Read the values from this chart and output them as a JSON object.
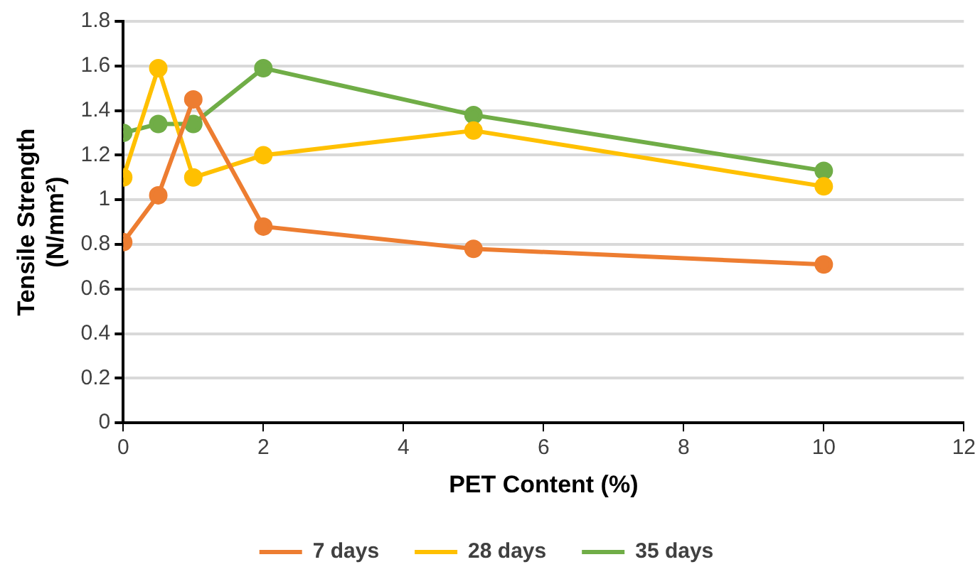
{
  "chart_data": {
    "type": "line",
    "xlabel": "PET Content (%)",
    "ylabel": "Tensile Strength\n(N/mm²)",
    "x": [
      0,
      0.5,
      1,
      2,
      5,
      10
    ],
    "series": [
      {
        "name": "7 days",
        "color": "#ed7d31",
        "values": [
          0.81,
          1.02,
          1.45,
          0.88,
          0.78,
          0.71
        ]
      },
      {
        "name": "28 days",
        "color": "#ffc000",
        "values": [
          1.1,
          1.59,
          1.1,
          1.2,
          1.31,
          1.06
        ]
      },
      {
        "name": "35 days",
        "color": "#70ad47",
        "values": [
          1.3,
          1.34,
          1.34,
          1.59,
          1.38,
          1.13
        ]
      }
    ],
    "xlim": [
      0,
      12
    ],
    "xticks": [
      0,
      2,
      4,
      6,
      8,
      10,
      12
    ],
    "ylim": [
      0,
      1.8
    ],
    "yticks": [
      0,
      0.2,
      0.4,
      0.6,
      0.8,
      1,
      1.2,
      1.4,
      1.6,
      1.8
    ],
    "grid": "y",
    "legend": "bottom",
    "marker": "circle",
    "line_style": "solid"
  }
}
